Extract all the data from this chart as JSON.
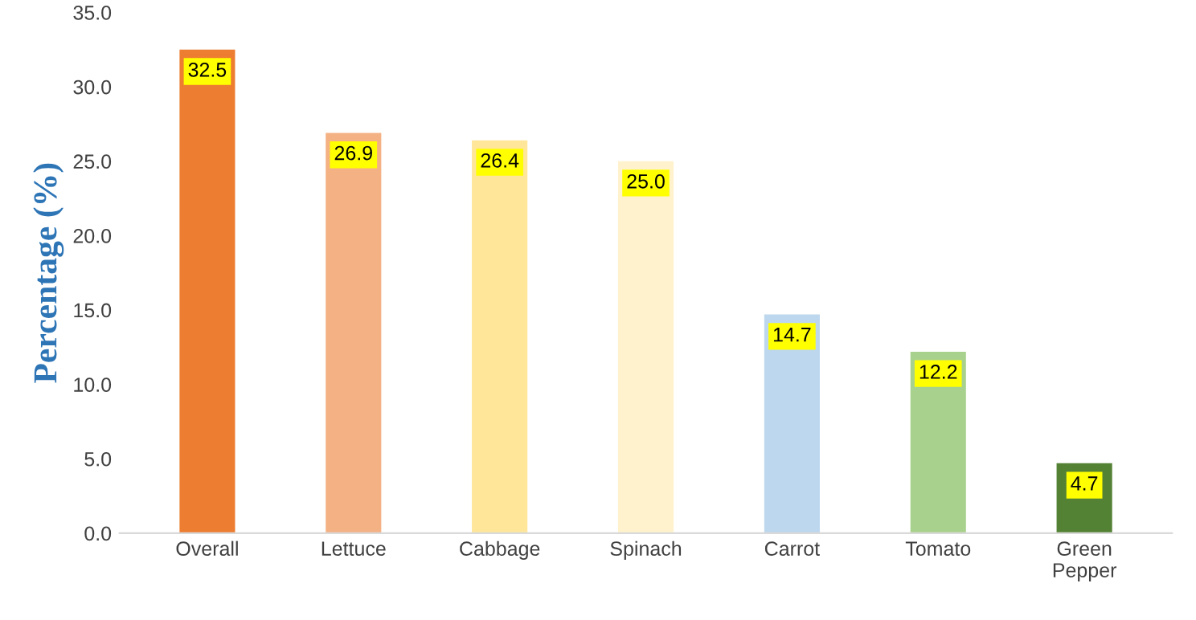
{
  "chart_data": {
    "type": "bar",
    "ylabel": "Percentage (%)",
    "categories": [
      "Overall",
      "Lettuce",
      "Cabbage",
      "Spinach",
      "Carrot",
      "Tomato",
      "Green\nPepper"
    ],
    "values": [
      32.5,
      26.9,
      26.4,
      25.0,
      14.7,
      12.2,
      4.7
    ],
    "colors": [
      "#ed7d31",
      "#f4b183",
      "#ffe699",
      "#fff2cc",
      "#bdd7ee",
      "#a9d18e",
      "#548235"
    ],
    "value_labels": [
      "32.5",
      "26.9",
      "26.4",
      "25.0",
      "14.7",
      "12.2",
      "4.7"
    ],
    "ylim": [
      0,
      35
    ],
    "yticks": [
      {
        "value": 0,
        "label": "0.0"
      },
      {
        "value": 5,
        "label": "5.0"
      },
      {
        "value": 10,
        "label": "10.0"
      },
      {
        "value": 15,
        "label": "15.0"
      },
      {
        "value": 20,
        "label": "20.0"
      },
      {
        "value": 25,
        "label": "25.0"
      },
      {
        "value": 30,
        "label": "30.0"
      },
      {
        "value": 35,
        "label": "35.0"
      }
    ],
    "grid": false,
    "legend": false
  }
}
